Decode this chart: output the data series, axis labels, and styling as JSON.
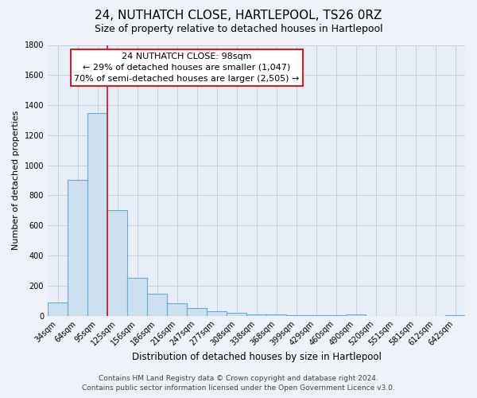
{
  "title": "24, NUTHATCH CLOSE, HARTLEPOOL, TS26 0RZ",
  "subtitle": "Size of property relative to detached houses in Hartlepool",
  "xlabel": "Distribution of detached houses by size in Hartlepool",
  "ylabel": "Number of detached properties",
  "categories": [
    "34sqm",
    "64sqm",
    "95sqm",
    "125sqm",
    "156sqm",
    "186sqm",
    "216sqm",
    "247sqm",
    "277sqm",
    "308sqm",
    "338sqm",
    "368sqm",
    "399sqm",
    "429sqm",
    "460sqm",
    "490sqm",
    "520sqm",
    "551sqm",
    "581sqm",
    "612sqm",
    "642sqm"
  ],
  "values": [
    90,
    905,
    1345,
    700,
    250,
    145,
    80,
    52,
    28,
    20,
    10,
    8,
    5,
    3,
    2,
    10,
    0,
    0,
    0,
    0,
    2
  ],
  "bar_color": "#cde0f0",
  "bar_edge_color": "#6aaad4",
  "bar_edge_width": 0.8,
  "property_line_color": "#cc2222",
  "property_line_xindex": 2.5,
  "ylim": [
    0,
    1800
  ],
  "yticks": [
    0,
    200,
    400,
    600,
    800,
    1000,
    1200,
    1400,
    1600,
    1800
  ],
  "annotation_text": "24 NUTHATCH CLOSE: 98sqm\n← 29% of detached houses are smaller (1,047)\n70% of semi-detached houses are larger (2,505) →",
  "annotation_box_facecolor": "#ffffff",
  "annotation_box_edgecolor": "#cc2222",
  "footer_line1": "Contains HM Land Registry data © Crown copyright and database right 2024.",
  "footer_line2": "Contains public sector information licensed under the Open Government Licence v3.0.",
  "fig_facecolor": "#eef2f8",
  "plot_facecolor": "#e8eef8",
  "grid_color": "#c8d0dc",
  "title_fontsize": 11,
  "subtitle_fontsize": 9,
  "annotation_fontsize": 8,
  "footer_fontsize": 6.5,
  "tick_fontsize": 7,
  "xlabel_fontsize": 8.5,
  "ylabel_fontsize": 8
}
